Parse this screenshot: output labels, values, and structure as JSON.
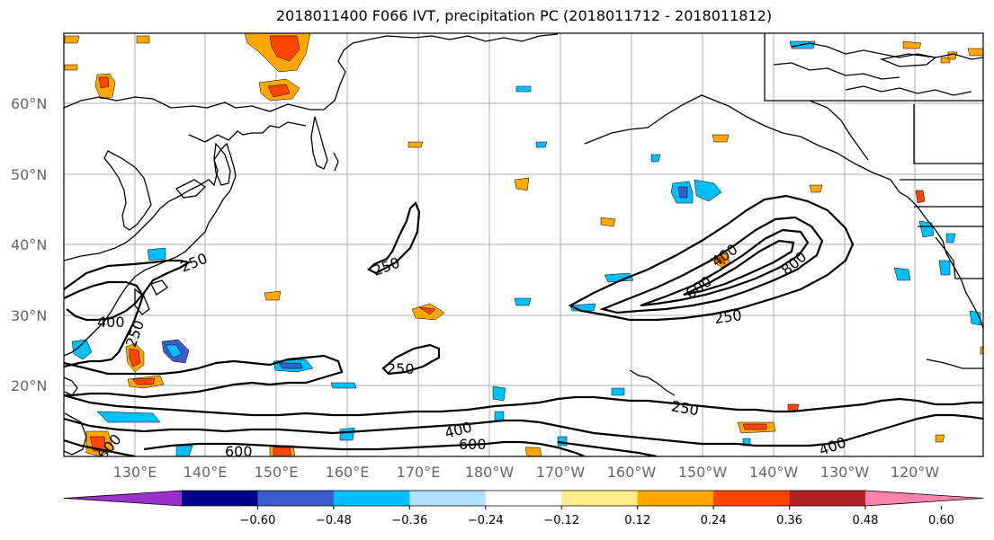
{
  "title": "2018011400 F066 IVT, precipitation PC (2018011712 - 2018011812)",
  "latitude_labels": [
    "60°N",
    "50°N",
    "40°N",
    "30°N",
    "20°N"
  ],
  "longitude_labels": [
    "130°E",
    "140°E",
    "150°E",
    "160°E",
    "170°E",
    "180°W",
    "170°W",
    "160°W",
    "150°W",
    "140°W",
    "130°W",
    "120°W"
  ],
  "contour_labels": [
    "250",
    "250",
    "250",
    "400",
    "250",
    "400",
    "600",
    "800",
    "250",
    "250",
    "400",
    "600",
    "600",
    "600",
    "400"
  ],
  "colorbar": {
    "colors": [
      "#9932cc",
      "#00008b",
      "#3a5fcd",
      "#00bfff",
      "#b0e2ff",
      "#ffffff",
      "#ffec8b",
      "#ffa500",
      "#ff4500",
      "#b22222",
      "#ff82ab"
    ],
    "ticks": [
      "−0.60",
      "−0.48",
      "−0.36",
      "−0.24",
      "−0.12",
      "0.12",
      "0.24",
      "0.36",
      "0.48",
      "0.60"
    ]
  }
}
